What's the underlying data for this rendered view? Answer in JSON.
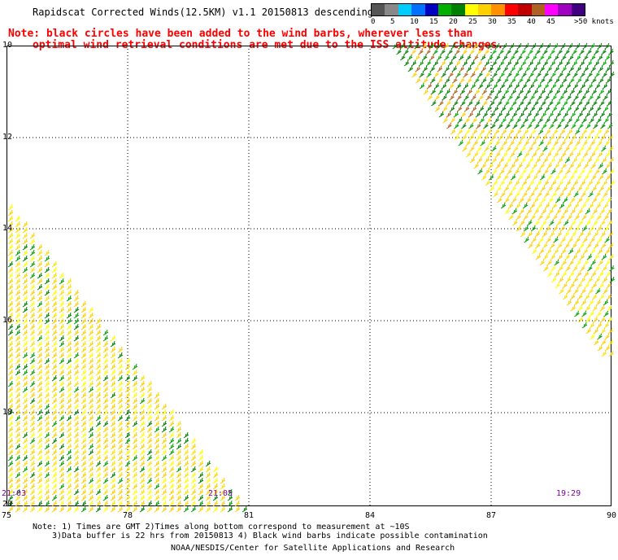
{
  "header": {
    "title": "Rapidscat Corrected Winds(12.5KM) v1.1 20150813 descending",
    "note_line1": "Note: black circles have been added to the wind barbs, wherever less than",
    "note_line2": "optimal wind retrieval conditions are met due to the ISS altitude changes."
  },
  "legend": {
    "unit": "knots",
    "labels": [
      "0",
      "5",
      "10",
      "15",
      "20",
      "25",
      "30",
      "35",
      "40",
      "45",
      ">50 knots"
    ],
    "colors": [
      "#555555",
      "#888888",
      "#00ccff",
      "#0070ff",
      "#0000c0",
      "#00b000",
      "#008000",
      "#ffff00",
      "#ffd000",
      "#ff9000",
      "#ff0000",
      "#c00000",
      "#b06020",
      "#ff00ff",
      "#a000c0",
      "#400080"
    ]
  },
  "map": {
    "lat_labels": [
      "10",
      "12",
      "14",
      "16",
      "18",
      "20"
    ],
    "lon_labels": [
      "75",
      "78",
      "81",
      "84",
      "87",
      "90"
    ],
    "times": [
      "21:03",
      "21:05",
      "19:29"
    ]
  },
  "footer": {
    "line1": "Note: 1) Times are GMT 2)Times along bottom correspond to measurement at ~10S",
    "line2": "3)Data buffer is 22 hrs from 20150813 4) Black wind barbs indicate possible contamination",
    "line3": "NOAA/NESDIS/Center for Satellite Applications and Research"
  }
}
